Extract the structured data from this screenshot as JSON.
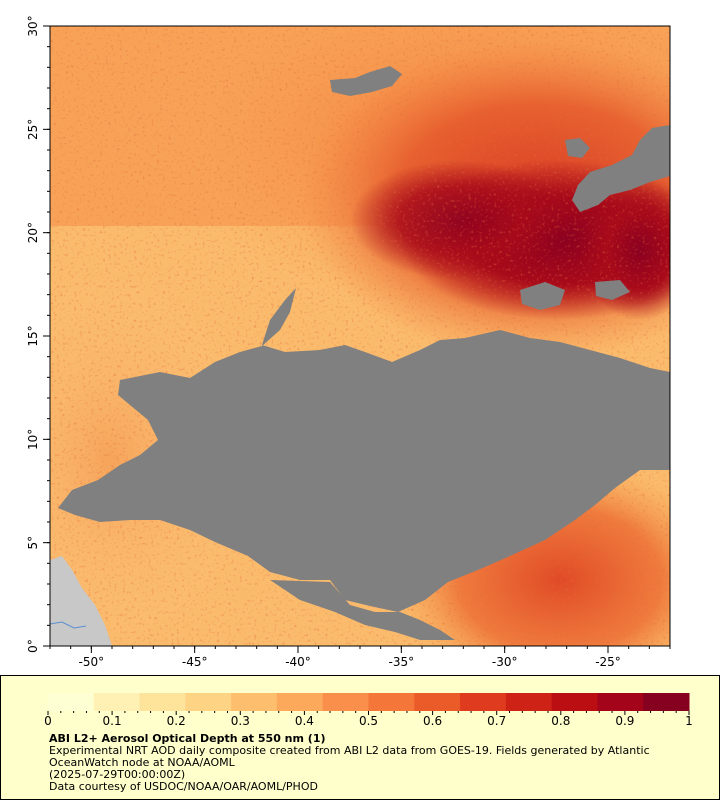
{
  "map": {
    "lon_range": [
      -52,
      -22
    ],
    "lat_range": [
      0,
      30
    ],
    "x_tick_labels": [
      "-50°",
      "-45°",
      "-40°",
      "-35°",
      "-30°",
      "-25°"
    ],
    "x_tick_values": [
      -50,
      -45,
      -40,
      -35,
      -30,
      -25
    ],
    "y_tick_labels": [
      "0°",
      "5°",
      "10°",
      "15°",
      "20°",
      "25°",
      "30°"
    ],
    "y_tick_values": [
      0,
      5,
      10,
      15,
      20,
      25,
      30
    ],
    "nodata_color": "#808080",
    "land_color": "#c8c8c8"
  },
  "legend": {
    "title": "ABI L2+ Aerosol Optical Depth at 550 nm (1)",
    "description": "Experimental NRT AOD daily composite created from ABI L2 data from GOES-19. Fields generated by Atlantic OceanWatch node at NOAA/AOML",
    "date": "(2025-07-29T00:00:00Z)",
    "credit": "Data courtesy of USDOC/NOAA/OAR/AOML/PHOD",
    "tick_labels": [
      "0",
      "0.1",
      "0.2",
      "0.3",
      "0.4",
      "0.5",
      "0.6",
      "0.7",
      "0.8",
      "0.9",
      "1"
    ],
    "colors": [
      "#ffffd4",
      "#fff0b3",
      "#fee49a",
      "#fed383",
      "#fdbe6e",
      "#fda95c",
      "#f98f4a",
      "#f47638",
      "#eb5b2a",
      "#df3b1e",
      "#cf2216",
      "#bb0e12",
      "#a30419",
      "#86001f"
    ]
  }
}
